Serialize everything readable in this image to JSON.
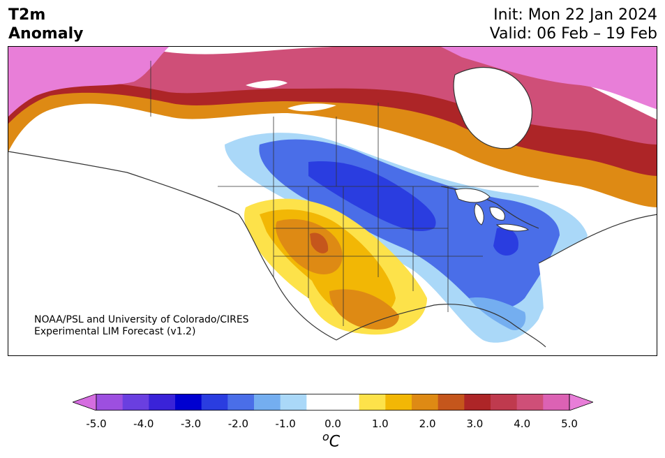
{
  "title": {
    "line1": "T2m",
    "line2": "Anomaly"
  },
  "dates": {
    "init": "Init: Mon 22 Jan 2024",
    "valid": "Valid: 06 Feb – 19 Feb"
  },
  "credit": {
    "line1": "NOAA/PSL and University of Colorado/CIRES",
    "line2": "Experimental LIM Forecast (v1.2)"
  },
  "colorbar": {
    "ticks": [
      "-5.0",
      "-4.0",
      "-3.0",
      "-2.0",
      "-1.0",
      "0.0",
      "1.0",
      "2.0",
      "3.0",
      "4.0",
      "5.0"
    ],
    "unit_base": "o",
    "unit_letter": "C",
    "colors": [
      "#d56de0",
      "#9d4fe0",
      "#6a3fe0",
      "#3a23d8",
      "#0000d0",
      "#2a3de0",
      "#4a6ee8",
      "#74aef0",
      "#aad8f8",
      "#ffffff",
      "#ffffff",
      "#fde24a",
      "#f2b705",
      "#de8a14",
      "#c5561c",
      "#ad2527",
      "#bf3a4e",
      "#cf4f78",
      "#dc62b4",
      "#e87ed8"
    ]
  }
}
